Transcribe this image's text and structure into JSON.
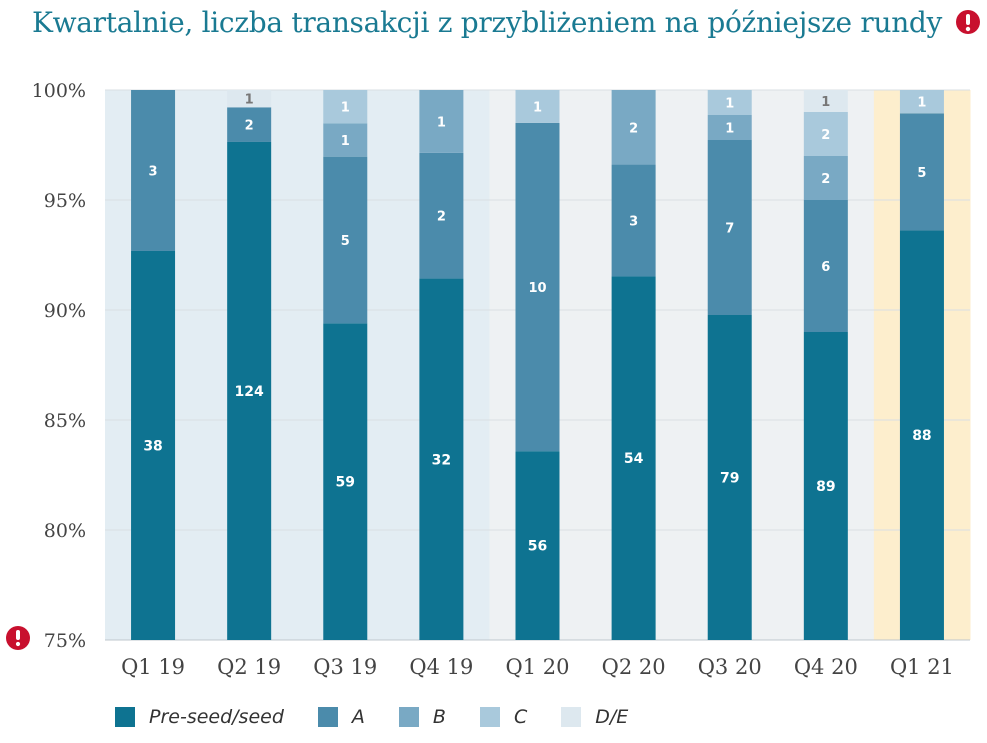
{
  "chart_data": {
    "type": "bar",
    "stacked": true,
    "normalized": true,
    "title": "Kwartalnie, liczba transakcji z przybliżeniem na późniejsze rundy",
    "title_icon": "warning-icon",
    "ylim": [
      75,
      100
    ],
    "yticks": [
      "75%",
      "80%",
      "85%",
      "90%",
      "95%",
      "100%"
    ],
    "categories": [
      "Q1 19",
      "Q2 19",
      "Q3 19",
      "Q4 19",
      "Q1 20",
      "Q2 20",
      "Q3 20",
      "Q4 20",
      "Q1 21"
    ],
    "series": [
      {
        "name": "Pre-seed/seed",
        "color": "#0e7391",
        "values": [
          38,
          124,
          59,
          32,
          56,
          54,
          79,
          89,
          88
        ]
      },
      {
        "name": "A",
        "color": "#4b8bab",
        "values": [
          3,
          2,
          5,
          2,
          10,
          3,
          7,
          6,
          5
        ]
      },
      {
        "name": "B",
        "color": "#79a9c4",
        "values": [
          0,
          0,
          1,
          1,
          0,
          2,
          1,
          2,
          0
        ]
      },
      {
        "name": "C",
        "color": "#a9c9dc",
        "values": [
          0,
          0,
          1,
          0,
          1,
          0,
          1,
          2,
          1
        ]
      },
      {
        "name": "D/E",
        "color": "#dde8ef",
        "values": [
          0,
          1,
          0,
          0,
          0,
          0,
          0,
          1,
          0
        ]
      }
    ],
    "axis_break_icon": "warning-icon",
    "highlight_category": "Q1 21"
  },
  "colors": {
    "title": "#1a7a92",
    "warning": "#c8102e",
    "bg_2019": "#e3edf3",
    "bg_2020": "#eef1f3",
    "bg_2021": "#fdeecd",
    "grid": "#d9dfe3",
    "axis_text": "#444444"
  }
}
